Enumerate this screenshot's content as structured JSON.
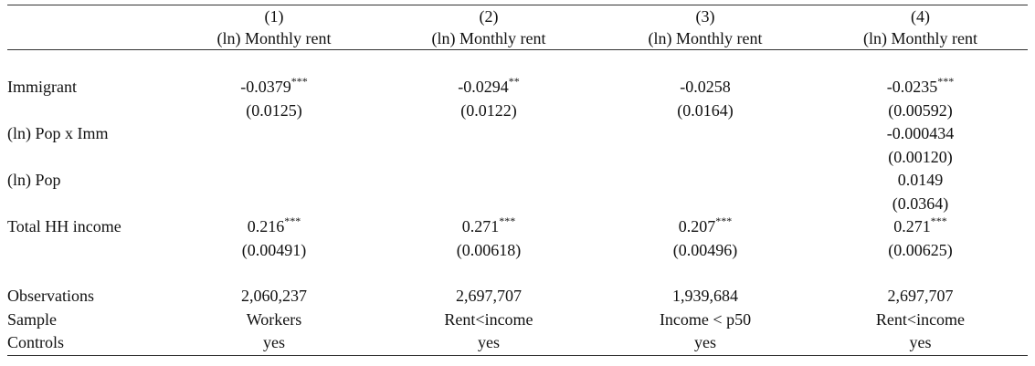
{
  "columns": [
    {
      "number": "(1)",
      "dependent_var": "(ln) Monthly rent"
    },
    {
      "number": "(2)",
      "dependent_var": "(ln) Monthly rent"
    },
    {
      "number": "(3)",
      "dependent_var": "(ln) Monthly rent"
    },
    {
      "number": "(4)",
      "dependent_var": "(ln) Monthly rent"
    }
  ],
  "rows": [
    {
      "label": "Immigrant",
      "coefs": [
        {
          "value": "-0.0379",
          "stars": "***"
        },
        {
          "value": "-0.0294",
          "stars": "**"
        },
        {
          "value": "-0.0258",
          "stars": ""
        },
        {
          "value": "-0.0235",
          "stars": "***"
        }
      ],
      "se": [
        "(0.0125)",
        "(0.0122)",
        "(0.0164)",
        "(0.00592)"
      ]
    },
    {
      "label": "(ln) Pop x Imm",
      "coefs": [
        {
          "value": "",
          "stars": ""
        },
        {
          "value": "",
          "stars": ""
        },
        {
          "value": "",
          "stars": ""
        },
        {
          "value": "-0.000434",
          "stars": ""
        }
      ],
      "se": [
        "",
        "",
        "",
        "(0.00120)"
      ]
    },
    {
      "label": "(ln) Pop",
      "coefs": [
        {
          "value": "",
          "stars": ""
        },
        {
          "value": "",
          "stars": ""
        },
        {
          "value": "",
          "stars": ""
        },
        {
          "value": "0.0149",
          "stars": ""
        }
      ],
      "se": [
        "",
        "",
        "",
        "(0.0364)"
      ]
    },
    {
      "label": "Total HH income",
      "coefs": [
        {
          "value": "0.216",
          "stars": "***"
        },
        {
          "value": "0.271",
          "stars": "***"
        },
        {
          "value": "0.207",
          "stars": "***"
        },
        {
          "value": "0.271",
          "stars": "***"
        }
      ],
      "se": [
        "(0.00491)",
        "(0.00618)",
        "(0.00496)",
        "(0.00625)"
      ]
    }
  ],
  "footer": [
    {
      "label": "Observations",
      "values": [
        "2,060,237",
        "2,697,707",
        "1,939,684",
        "2,697,707"
      ]
    },
    {
      "label": "Sample",
      "values": [
        "Workers",
        "Rent<income",
        "Income < p50",
        "Rent<income"
      ]
    },
    {
      "label": "Controls",
      "values": [
        "yes",
        "yes",
        "yes",
        "yes"
      ]
    }
  ]
}
